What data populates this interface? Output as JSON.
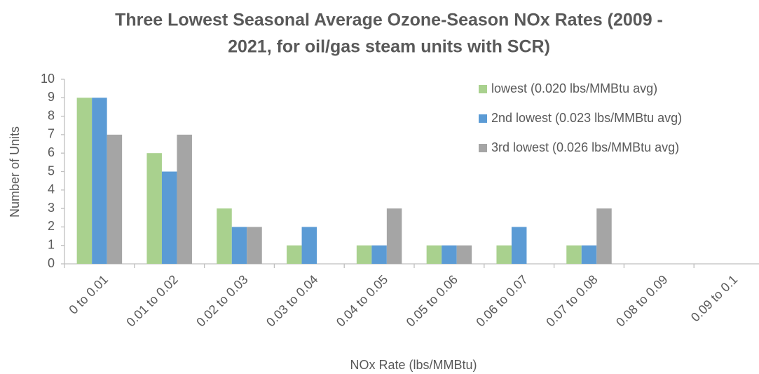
{
  "chart_data": {
    "type": "bar",
    "title": [
      "Three Lowest Seasonal Average Ozone-Season NOx Rates (2009 -",
      "2021, for oil/gas steam units with SCR)"
    ],
    "x_label": "NOx Rate (lbs/MMBtu)",
    "y_label": "Number of Units",
    "categories": [
      "0 to 0.01",
      "0.01 to 0.02",
      "0.02 to 0.03",
      "0.03 to 0.04",
      "0.04 to 0.05",
      "0.05 to 0.06",
      "0.06 to 0.07",
      "0.07 to 0.08",
      "0.08 to 0.09",
      "0.09 to 0.1"
    ],
    "series": [
      {
        "name": "lowest (0.020 lbs/MMBtu avg)",
        "color": "#a9d18e",
        "values": [
          9,
          6,
          3,
          1,
          1,
          1,
          1,
          1,
          0,
          0
        ]
      },
      {
        "name": "2nd lowest (0.023 lbs/MMBtu avg)",
        "color": "#5b9bd5",
        "values": [
          9,
          5,
          2,
          2,
          1,
          1,
          2,
          1,
          0,
          0
        ]
      },
      {
        "name": "3rd lowest (0.026 lbs/MMBtu avg)",
        "color": "#a5a5a5",
        "values": [
          7,
          7,
          2,
          0,
          3,
          1,
          0,
          3,
          0,
          0
        ]
      }
    ],
    "ylim": [
      0,
      10
    ],
    "yticks": [
      0,
      1,
      2,
      3,
      4,
      5,
      6,
      7,
      8,
      9,
      10
    ],
    "grid": false,
    "legend": "upper right"
  }
}
